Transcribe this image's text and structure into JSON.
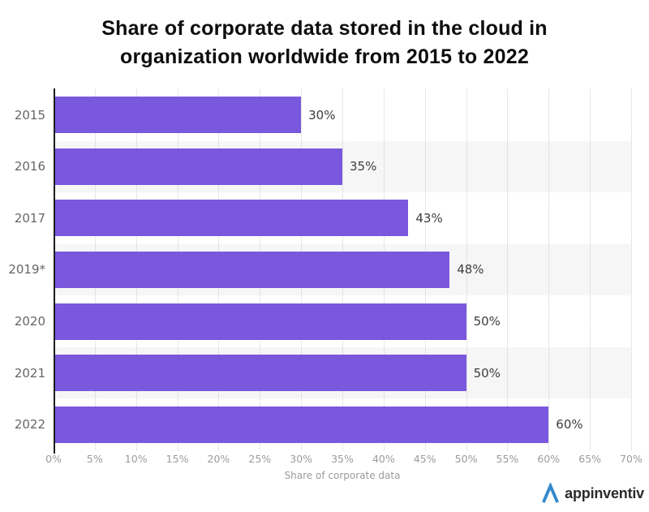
{
  "title": {
    "line1": "Share of corporate data stored in the cloud in",
    "line2": "organization worldwide from 2015 to 2022"
  },
  "chart_data": {
    "type": "bar",
    "orientation": "horizontal",
    "categories": [
      "2015",
      "2016",
      "2017",
      "2019*",
      "2020",
      "2021",
      "2022"
    ],
    "values": [
      30,
      35,
      43,
      48,
      50,
      50,
      60
    ],
    "value_labels": [
      "30%",
      "35%",
      "43%",
      "48%",
      "50%",
      "50%",
      "60%"
    ],
    "xlabel": "Share of corporate data",
    "x_ticks": [
      "0%",
      "5%",
      "10%",
      "15%",
      "20%",
      "25%",
      "30%",
      "35%",
      "40%",
      "45%",
      "50%",
      "55%",
      "60%",
      "65%",
      "70%"
    ],
    "xlim": [
      0,
      70
    ],
    "grid": "dotted-vertical",
    "legend": "none",
    "shaded_row_indices": [
      1,
      3,
      5
    ]
  },
  "colors": {
    "bar": "#7a58dd",
    "band": "#f6f6f7",
    "grid": "#cfcfcf",
    "axis_line": "#1c1c1c",
    "tick_label": "#9b9b9b",
    "category_label": "#666666",
    "value_label": "#3d3d3d",
    "title": "#0d0d0d",
    "logo_blue": "#3389cb",
    "logo_text": "#2b2b2b"
  },
  "footer": {
    "logo_text": "appinventiv"
  }
}
